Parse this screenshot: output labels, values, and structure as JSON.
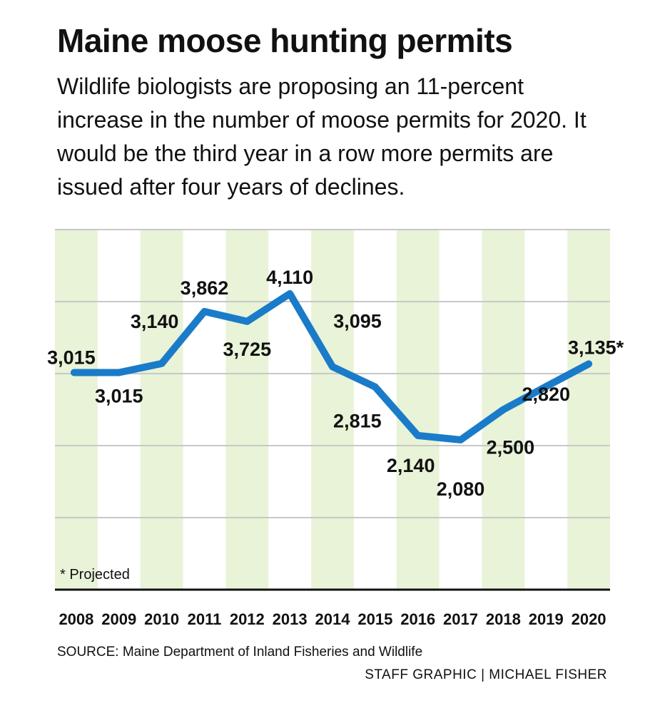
{
  "header": {
    "title": "Maine moose hunting permits",
    "subtitle": "Wildlife biologists are proposing an 11-percent increase in the number of moose permits for 2020. It would be the third year in a row more permits are issued after four years of declines."
  },
  "footnote": "* Projected",
  "source": "SOURCE: Maine Department of Inland Fisheries and Wildlife",
  "credit": "STAFF GRAPHIC | MICHAEL FISHER",
  "colors": {
    "line": "#1a7bc9",
    "band": "#e8f3d8",
    "grid": "#c8c8c8",
    "baseline": "#111111"
  },
  "chart_data": {
    "type": "line",
    "title": "Maine moose hunting permits",
    "categories": [
      "2008",
      "2009",
      "2010",
      "2011",
      "2012",
      "2013",
      "2014",
      "2015",
      "2016",
      "2017",
      "2018",
      "2019",
      "2020"
    ],
    "values": [
      3015,
      3015,
      3140,
      3862,
      3725,
      4110,
      3095,
      2815,
      2140,
      2080,
      2500,
      2820,
      3135
    ],
    "labels": [
      "3,015",
      "3,015",
      "3,140",
      "3,862",
      "3,725",
      "4,110",
      "3,095",
      "2,815",
      "2,140",
      "2,080",
      "2,500",
      "2,820",
      "3,135*"
    ],
    "projected": [
      "2020"
    ],
    "ylim": [
      0,
      5000
    ],
    "grid": true,
    "legend": "none"
  }
}
